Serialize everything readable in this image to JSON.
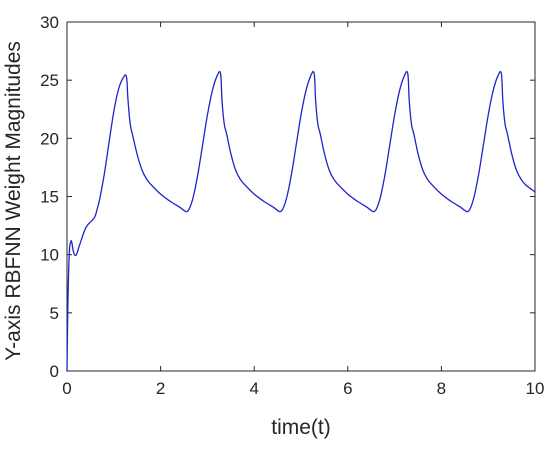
{
  "chart_data": {
    "type": "line",
    "title": "",
    "xlabel": "time(t)",
    "ylabel": "Y-axis RBFNN Weight Magnitudes",
    "xlim": [
      0,
      10
    ],
    "ylim": [
      0,
      30
    ],
    "xticks": [
      0,
      2,
      4,
      6,
      8,
      10
    ],
    "yticks": [
      0,
      5,
      10,
      15,
      20,
      25,
      30
    ],
    "grid": false,
    "legend": "none",
    "colors": {
      "line": "#1f24c8",
      "axis": "#262626",
      "background": "#ffffff"
    },
    "series": [
      {
        "x": [
          0,
          0.02,
          0.05,
          0.08,
          0.1,
          0.13,
          0.16,
          0.2,
          0.25,
          0.3,
          0.35,
          0.4,
          0.45,
          0.5,
          0.55,
          0.6,
          0.65,
          0.7,
          0.8,
          0.9,
          1.0,
          1.1,
          1.2,
          1.27,
          1.3,
          1.33,
          1.36,
          1.4,
          1.5,
          1.6,
          1.7,
          1.8,
          2.0,
          2.2,
          2.4,
          2.5,
          2.56,
          2.62,
          2.7,
          2.8,
          2.9,
          3.0,
          3.1,
          3.2,
          3.28,
          3.31,
          3.34,
          3.37,
          3.41,
          3.5,
          3.6,
          3.7,
          3.8,
          4.0,
          4.2,
          4.4,
          4.5,
          4.56,
          4.62,
          4.7,
          4.8,
          4.9,
          5.0,
          5.1,
          5.2,
          5.28,
          5.31,
          5.34,
          5.37,
          5.41,
          5.5,
          5.6,
          5.7,
          5.8,
          6.0,
          6.2,
          6.4,
          6.5,
          6.56,
          6.62,
          6.7,
          6.8,
          6.9,
          7.0,
          7.1,
          7.2,
          7.28,
          7.31,
          7.34,
          7.37,
          7.41,
          7.5,
          7.6,
          7.7,
          7.8,
          8.0,
          8.2,
          8.4,
          8.5,
          8.56,
          8.62,
          8.7,
          8.8,
          8.9,
          9.0,
          9.1,
          9.2,
          9.28,
          9.31,
          9.34,
          9.37,
          9.41,
          9.5,
          9.6,
          9.7,
          9.8,
          10.0
        ],
        "y": [
          0,
          6.0,
          10.2,
          11.1,
          11.1,
          10.4,
          10.0,
          10.0,
          10.6,
          11.2,
          11.8,
          12.3,
          12.6,
          12.8,
          13.0,
          13.3,
          14.0,
          14.8,
          17.0,
          19.7,
          22.3,
          24.2,
          25.2,
          25.3,
          23.5,
          22.0,
          21.0,
          20.3,
          18.6,
          17.3,
          16.5,
          16.0,
          15.2,
          14.6,
          14.1,
          13.8,
          13.7,
          14.0,
          15.0,
          17.0,
          19.5,
          22.0,
          24.0,
          25.3,
          25.6,
          23.4,
          21.9,
          21.0,
          20.4,
          18.7,
          17.3,
          16.5,
          16.0,
          15.2,
          14.6,
          14.1,
          13.8,
          13.7,
          14.0,
          15.0,
          17.0,
          19.5,
          22.0,
          24.0,
          25.3,
          25.6,
          23.4,
          21.9,
          21.0,
          20.4,
          18.7,
          17.3,
          16.5,
          16.0,
          15.2,
          14.6,
          14.1,
          13.8,
          13.7,
          14.0,
          15.0,
          17.0,
          19.5,
          22.0,
          24.0,
          25.3,
          25.6,
          23.4,
          21.9,
          21.0,
          20.4,
          18.7,
          17.3,
          16.5,
          16.0,
          15.2,
          14.6,
          14.1,
          13.8,
          13.7,
          14.0,
          15.0,
          17.0,
          19.5,
          22.0,
          24.0,
          25.3,
          25.6,
          23.4,
          21.9,
          21.0,
          20.4,
          18.7,
          17.3,
          16.5,
          16.0,
          15.4
        ]
      }
    ]
  }
}
